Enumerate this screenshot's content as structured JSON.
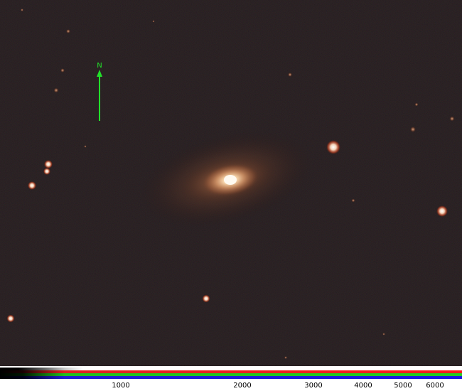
{
  "image": {
    "subject": "spiral-galaxy",
    "background_color": "#000000",
    "galaxy_core_color": "#fff4dc",
    "galaxy_halo_color": "#d08a50",
    "star_color": "#ffe6c8"
  },
  "orientation": {
    "north_label": "N",
    "arrow_color": "#22e02a",
    "icon": "north-arrow-icon"
  },
  "colorbar": {
    "ticks": [
      "1000",
      "2000",
      "3000",
      "4000",
      "5000",
      "6000"
    ]
  }
}
